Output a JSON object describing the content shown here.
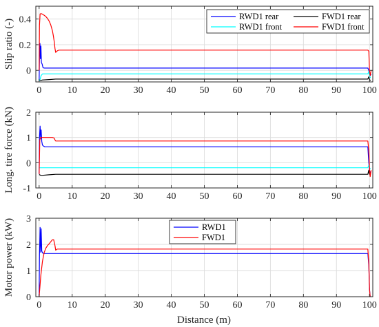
{
  "figure": {
    "xlabel": "Distance (m)"
  },
  "colors": {
    "blue": "#0000ff",
    "black": "#000000",
    "cyan": "#00ffff",
    "red": "#ff0000"
  },
  "chart_data": [
    {
      "type": "line",
      "title": "",
      "xlabel": "",
      "ylabel": "Slip ratio (-)",
      "xlim": [
        -1,
        101
      ],
      "ylim": [
        -0.09,
        0.5
      ],
      "xticks": [
        0,
        10,
        20,
        30,
        40,
        50,
        60,
        70,
        80,
        90,
        100
      ],
      "yticks": [
        0,
        0.2,
        0.4
      ],
      "ytick_labels": [
        "0",
        "0.2",
        "0.4"
      ],
      "grid": true,
      "legend_position": "top-right",
      "legend_columns": 2,
      "series": [
        {
          "name": "RWD1 rear",
          "color": "blue",
          "x": [
            0,
            0.1,
            0.25,
            0.4,
            0.55,
            0.7,
            0.9,
            1.2,
            1.6,
            2,
            10,
            50,
            99.5,
            99.8,
            100,
            100.2,
            100.5
          ],
          "y": [
            -0.08,
            0.1,
            0.21,
            0.09,
            0.19,
            0.06,
            0.05,
            0.02,
            0.018,
            0.018,
            0.018,
            0.018,
            0.018,
            0.0,
            -0.03,
            -0.04,
            -0.03
          ]
        },
        {
          "name": "FWD1 rear",
          "color": "black",
          "x": [
            0,
            0.5,
            1,
            3,
            5,
            6,
            50,
            99.5,
            99.8,
            100,
            100.3
          ],
          "y": [
            -0.08,
            -0.078,
            -0.075,
            -0.072,
            -0.068,
            -0.068,
            -0.068,
            -0.068,
            -0.05,
            -0.07,
            -0.08
          ]
        },
        {
          "name": "RWD1 front",
          "color": "cyan",
          "x": [
            0,
            0.3,
            0.6,
            1,
            2,
            50,
            99.5,
            99.8,
            100,
            100.3
          ],
          "y": [
            -0.08,
            -0.07,
            -0.04,
            -0.028,
            -0.028,
            -0.028,
            -0.028,
            -0.01,
            -0.04,
            -0.06
          ]
        },
        {
          "name": "FWD1 front",
          "color": "red",
          "x": [
            0,
            0.1,
            0.3,
            0.6,
            1,
            1.5,
            2,
            2.5,
            3,
            3.5,
            4,
            4.3,
            4.6,
            4.8,
            5,
            5.3,
            5.7,
            6,
            8,
            50,
            99.5,
            99.8,
            100,
            100.2,
            100.5
          ],
          "y": [
            0.0,
            0.35,
            0.44,
            0.442,
            0.438,
            0.43,
            0.42,
            0.405,
            0.385,
            0.355,
            0.31,
            0.27,
            0.22,
            0.17,
            0.14,
            0.148,
            0.155,
            0.158,
            0.158,
            0.158,
            0.158,
            0.15,
            0.0,
            -0.04,
            0.0
          ]
        }
      ]
    },
    {
      "type": "line",
      "title": "",
      "xlabel": "",
      "ylabel": "Long. tire force (kN)",
      "xlim": [
        -1,
        101
      ],
      "ylim": [
        -1,
        2
      ],
      "xticks": [
        0,
        10,
        20,
        30,
        40,
        50,
        60,
        70,
        80,
        90,
        100
      ],
      "yticks": [
        -1,
        0,
        1,
        2
      ],
      "ytick_labels": [
        "-1",
        "0",
        "1",
        "2"
      ],
      "grid": true,
      "series": [
        {
          "name": "RWD1 rear",
          "color": "blue",
          "x": [
            0,
            0.1,
            0.3,
            0.45,
            0.6,
            0.8,
            1,
            1.3,
            1.7,
            2.2,
            10,
            50,
            99.5,
            99.8,
            100,
            100.3
          ],
          "y": [
            -0.45,
            1.0,
            1.45,
            0.95,
            1.3,
            0.85,
            0.7,
            0.66,
            0.63,
            0.63,
            0.63,
            0.63,
            0.63,
            0.0,
            -0.3,
            -0.4
          ]
        },
        {
          "name": "FWD1 rear",
          "color": "black",
          "x": [
            0,
            0.5,
            1,
            3,
            5,
            6,
            50,
            99.5,
            99.8,
            100,
            100.3
          ],
          "y": [
            -0.47,
            -0.5,
            -0.5,
            -0.48,
            -0.46,
            -0.46,
            -0.46,
            -0.46,
            -0.3,
            -0.45,
            -0.5
          ]
        },
        {
          "name": "RWD1 front",
          "color": "cyan",
          "x": [
            0,
            0.4,
            1,
            50,
            99.5,
            99.8,
            100,
            100.3
          ],
          "y": [
            -0.2,
            -0.2,
            -0.2,
            -0.2,
            -0.2,
            -0.1,
            -0.2,
            -0.25
          ]
        },
        {
          "name": "FWD1 front",
          "color": "red",
          "x": [
            0,
            0.2,
            0.5,
            1,
            2,
            3,
            4,
            4.5,
            4.8,
            5,
            5.5,
            6,
            50,
            99.5,
            99.8,
            100,
            100.2,
            100.5
          ],
          "y": [
            -0.45,
            0.9,
            1.0,
            1.0,
            1.0,
            1.0,
            1.0,
            0.98,
            0.9,
            0.86,
            0.86,
            0.86,
            0.86,
            0.86,
            0.5,
            -0.2,
            -0.55,
            -0.3
          ]
        }
      ]
    },
    {
      "type": "line",
      "title": "",
      "xlabel": "Distance (m)",
      "ylabel": "Motor power (kW)",
      "xlim": [
        -1,
        101
      ],
      "ylim": [
        0,
        3
      ],
      "xticks": [
        0,
        10,
        20,
        30,
        40,
        50,
        60,
        70,
        80,
        90,
        100
      ],
      "yticks": [
        0,
        1,
        2,
        3
      ],
      "ytick_labels": [
        "0",
        "1",
        "2",
        "3"
      ],
      "grid": true,
      "legend_position": "top-left",
      "legend_columns": 1,
      "series": [
        {
          "name": "RWD1",
          "color": "blue",
          "x": [
            0,
            0.1,
            0.3,
            0.45,
            0.6,
            0.8,
            1,
            1.4,
            2,
            10,
            50,
            99.5,
            99.8,
            100,
            100.2
          ],
          "y": [
            0.0,
            1.6,
            2.65,
            1.7,
            2.6,
            1.75,
            1.68,
            1.65,
            1.65,
            1.65,
            1.65,
            1.65,
            1.2,
            0.3,
            0.0
          ]
        },
        {
          "name": "FWD1",
          "color": "red",
          "x": [
            0,
            0.5,
            1,
            1.5,
            2,
            2.5,
            3,
            3.5,
            4,
            4.4,
            4.8,
            5,
            5.5,
            6,
            50,
            99.5,
            99.8,
            100,
            100.2
          ],
          "y": [
            0.0,
            0.8,
            1.35,
            1.68,
            1.85,
            1.95,
            2.02,
            2.1,
            2.18,
            2.18,
            1.95,
            1.78,
            1.82,
            1.82,
            1.82,
            1.82,
            1.3,
            0.3,
            0.0
          ]
        }
      ]
    }
  ]
}
